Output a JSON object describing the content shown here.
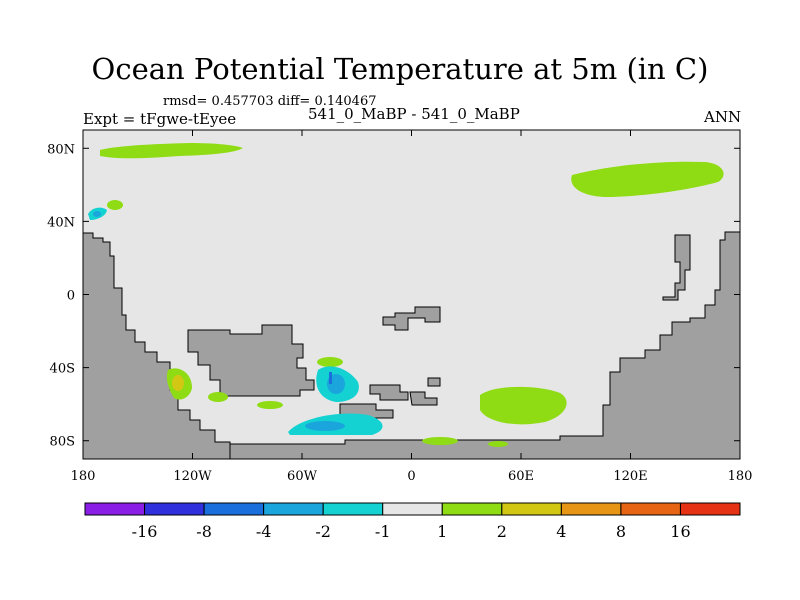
{
  "chart_data": {
    "type": "map-contour",
    "title": "Ocean Potential Temperature at 5m (in C)",
    "stats_text": "rmsd= 0.457703 diff= 0.140467",
    "experiment_text": "Expt = tFgwe-tEyee",
    "case_text": "541_0_MaBP - 541_0_MaBP",
    "season": "ANN",
    "x_axis": {
      "range": [
        -180,
        180
      ],
      "ticks": [
        -180,
        -120,
        -60,
        0,
        60,
        120,
        180
      ],
      "tick_labels": [
        "180",
        "120W",
        "60W",
        "0",
        "60E",
        "120E",
        "180"
      ]
    },
    "y_axis": {
      "range": [
        -90,
        90
      ],
      "ticks": [
        80,
        40,
        0,
        -40,
        -80
      ],
      "tick_labels": [
        "80N",
        "40N",
        "0",
        "40S",
        "80S"
      ]
    },
    "colorbar": {
      "boundaries": [
        "-16",
        "-8",
        "-4",
        "-2",
        "-1",
        "1",
        "2",
        "4",
        "8",
        "16"
      ],
      "colors": [
        "#8a1ee6",
        "#3030dc",
        "#1a6fdc",
        "#1aa5dc",
        "#14d2d2",
        "#e6e6e6",
        "#8fdc14",
        "#d2c814",
        "#e69614",
        "#e66414",
        "#e63214"
      ]
    },
    "land_color": "#a0a0a0",
    "ocean_neutral_color": "#e6e6e6"
  }
}
